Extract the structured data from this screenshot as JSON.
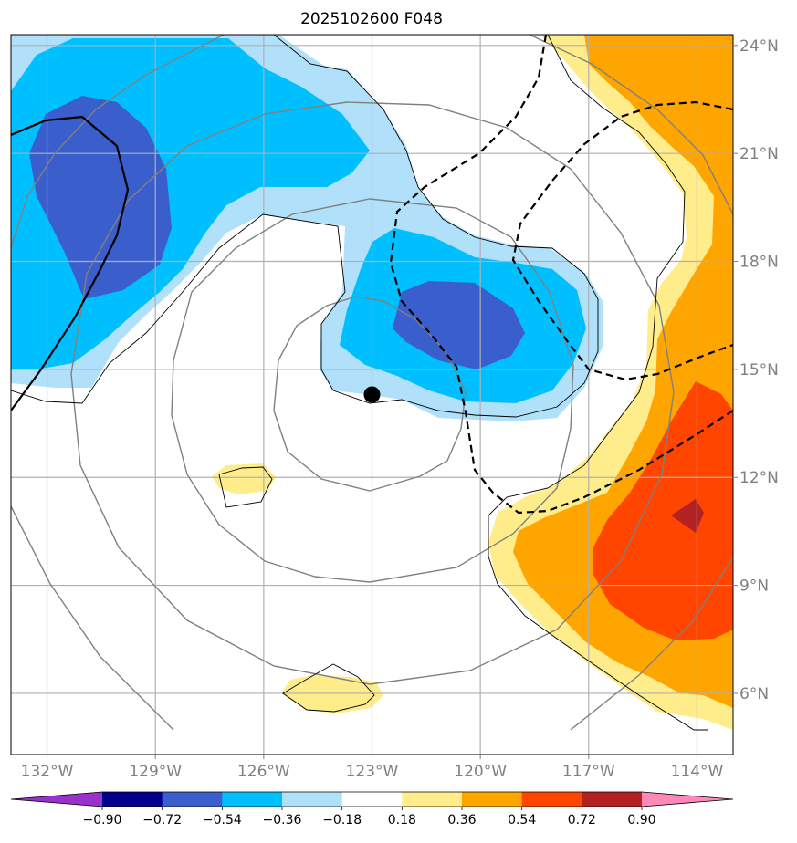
{
  "chart_data": {
    "type": "filled-contour-map",
    "title": "2025102600 F048",
    "x_range_lon": [
      -133,
      -113
    ],
    "y_range_lat": [
      4.3,
      24.3
    ],
    "x_ticks": [
      {
        "lon": -132,
        "label": "132°W"
      },
      {
        "lon": -129,
        "label": "129°W"
      },
      {
        "lon": -126,
        "label": "126°W"
      },
      {
        "lon": -123,
        "label": "123°W"
      },
      {
        "lon": -120,
        "label": "120°W"
      },
      {
        "lon": -117,
        "label": "117°W"
      },
      {
        "lon": -114,
        "label": "114°W"
      }
    ],
    "y_ticks": [
      {
        "lat": 6,
        "label": "6°N"
      },
      {
        "lat": 9,
        "label": "9°N"
      },
      {
        "lat": 12,
        "label": "12°N"
      },
      {
        "lat": 15,
        "label": "15°N"
      },
      {
        "lat": 18,
        "label": "18°N"
      },
      {
        "lat": 21,
        "label": "21°N"
      },
      {
        "lat": 24,
        "label": "24°N"
      }
    ],
    "colorbar": {
      "levels": [
        -0.9,
        -0.72,
        -0.54,
        -0.36,
        -0.18,
        0.18,
        0.36,
        0.54,
        0.72,
        0.9
      ],
      "tick_labels": [
        "−0.90",
        "−0.72",
        "−0.54",
        "−0.36",
        "−0.18",
        "0.18",
        "0.36",
        "0.54",
        "0.72",
        "0.90"
      ],
      "colors": [
        "#9932cc",
        "#00008b",
        "#3a5fcd",
        "#00bfff",
        "#b0e0fa",
        "#ffffff",
        "#ffec8b",
        "#ffa500",
        "#ff4500",
        "#b22222",
        "#ff88bb"
      ],
      "extend": "both"
    },
    "center_marker": {
      "lon": -123,
      "lat": 14.3
    },
    "range_rings": "concentric circles around storm center",
    "overlays": [
      "gray range rings",
      "thin black contour",
      "thick solid black line",
      "dashed black lines"
    ]
  },
  "colors": {
    "grid": "#b0b0b0",
    "ring": "#808080",
    "axis_labels": "#808080"
  }
}
